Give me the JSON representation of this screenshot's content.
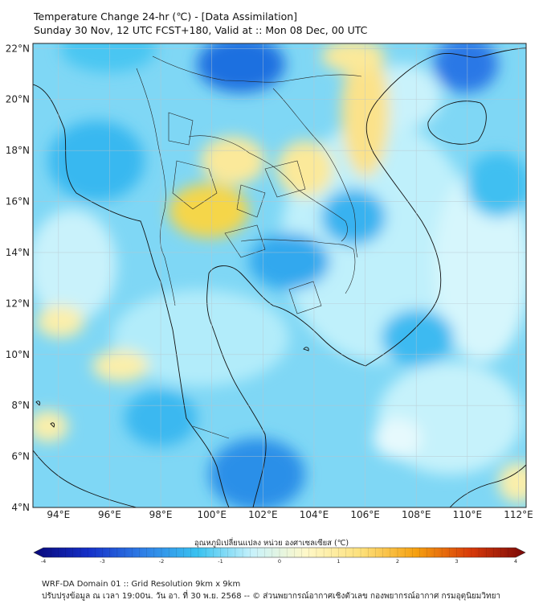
{
  "title": {
    "line1": "Temperature Change 24-hr (℃) - [Data Assimilation]",
    "line2": "Sunday 30 Nov, 12 UTC FCST+180, Valid at :: Mon 08 Dec, 00 UTC"
  },
  "map": {
    "lat_labels": [
      "22°N",
      "20°N",
      "18°N",
      "16°N",
      "14°N",
      "12°N",
      "10°N",
      "8°N",
      "6°N",
      "4°N"
    ],
    "lon_labels": [
      "94°E",
      "96°E",
      "98°E",
      "100°E",
      "102°E",
      "104°E",
      "106°E",
      "108°E",
      "110°E",
      "112°E"
    ],
    "lat_range": [
      4,
      22.2
    ],
    "lon_range": [
      93,
      112.3
    ]
  },
  "colorbar": {
    "title": "อุณหภูมิเปลี่ยนแปลง หน่วย องศาเซลเซียส (℃)",
    "tick_labels": [
      "-4",
      "-3",
      "-2",
      "-1",
      "0",
      "1",
      "2",
      "3",
      "4"
    ],
    "range": [
      -4,
      4
    ],
    "colors": [
      "#08087a",
      "#1530c8",
      "#2f7fe6",
      "#39c2f0",
      "#c8f2fb",
      "#fff8c8",
      "#fde07a",
      "#f5a010",
      "#d83a0a",
      "#7a0808"
    ]
  },
  "footer": {
    "line1": "WRF-DA Domain 01 :: Grid Resolution 9km x 9km",
    "line2": "ปรับปรุงข้อมูล ณ เวลา 19:00น. วัน อา. ที่ 30 พ.ย. 2568 -- © ส่วนพยากรณ์อากาศเชิงตัวเลข กองพยากรณ์อากาศ กรมอุตุนิยมวิทยา"
  }
}
